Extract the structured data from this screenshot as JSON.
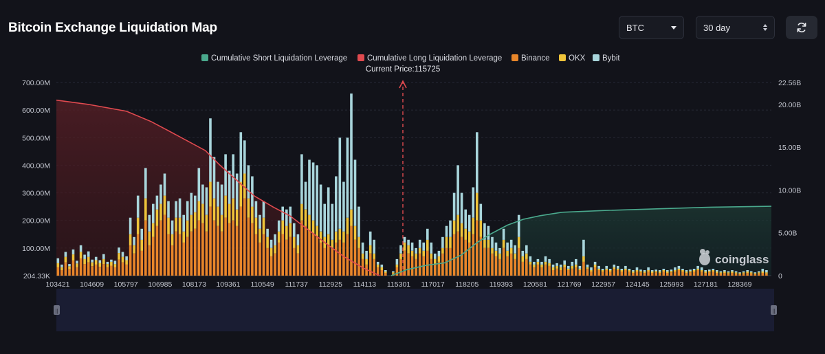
{
  "header": {
    "title": "Bitcoin Exchange Liquidation Map",
    "coin_select": "BTC",
    "range_select": "30 day",
    "refresh_icon": "refresh-icon"
  },
  "watermark": "coinglass",
  "colors": {
    "short_cum": "#4aa98d",
    "long_cum": "#e04a4f",
    "binance": "#e8862a",
    "okx": "#efc43a",
    "bybit": "#a9d6dc",
    "background": "#12131a"
  },
  "chart_data": {
    "type": "bar",
    "current_price_label": "Current Price:115725",
    "current_price": 115725,
    "y_left_ticks": [
      "700.00M",
      "600.00M",
      "500.00M",
      "400.00M",
      "300.00M",
      "200.00M",
      "100.00M",
      "204.33K"
    ],
    "y_left_range": [
      0,
      700000000
    ],
    "y_right_ticks": [
      "22.56B",
      "20.00B",
      "15.00B",
      "10.00B",
      "5.00B",
      "0"
    ],
    "y_right_range": [
      0,
      22560000000
    ],
    "x_ticks": [
      "103421",
      "104609",
      "105797",
      "106985",
      "108173",
      "109361",
      "110549",
      "111737",
      "112925",
      "114113",
      "115301",
      "117017",
      "118205",
      "119393",
      "120581",
      "121769",
      "122957",
      "124145",
      "125993",
      "127181",
      "128369"
    ],
    "x_range": [
      103421,
      129700
    ],
    "legend": [
      {
        "name": "Cumulative Short Liquidation Leverage",
        "color": "#4aa98d"
      },
      {
        "name": "Cumulative Long Liquidation Leverage",
        "color": "#e04a4f"
      },
      {
        "name": "Binance",
        "color": "#e8862a"
      },
      {
        "name": "OKX",
        "color": "#efc43a"
      },
      {
        "name": "Bybit",
        "color": "#a9d6dc"
      }
    ],
    "series_long_cum": {
      "name": "Cumulative Long Liquidation Leverage",
      "x": [
        103421,
        104600,
        106000,
        106900,
        107500,
        108200,
        108900,
        109400,
        110100,
        110700,
        111400,
        112000,
        112700,
        113400,
        114000,
        114700,
        115301
      ],
      "y": [
        20.5,
        20.0,
        19.2,
        18.0,
        17.0,
        15.8,
        14.6,
        13.0,
        11.0,
        9.3,
        8.0,
        7.0,
        5.3,
        3.6,
        2.2,
        0.9,
        0
      ]
    },
    "series_short_cum": {
      "name": "Cumulative Short Liquidation Leverage",
      "x": [
        115725,
        116300,
        117000,
        117700,
        118300,
        118900,
        119400,
        120000,
        120600,
        121200,
        122000,
        123500,
        125500,
        127500,
        129700
      ],
      "y": [
        0,
        0.7,
        1.2,
        1.5,
        2.4,
        3.9,
        4.9,
        5.9,
        6.6,
        7.0,
        7.4,
        7.6,
        7.8,
        8.0,
        8.1
      ]
    },
    "bars_note": "per-price-level liquidation stacks (Binance / OKX / Bybit), values in USD",
    "bars": [
      [
        103480,
        30,
        15,
        18
      ],
      [
        103620,
        20,
        10,
        10
      ],
      [
        103760,
        48,
        20,
        18
      ],
      [
        103900,
        24,
        10,
        8
      ],
      [
        104040,
        55,
        22,
        18
      ],
      [
        104180,
        30,
        14,
        10
      ],
      [
        104320,
        62,
        24,
        24
      ],
      [
        104460,
        42,
        18,
        16
      ],
      [
        104600,
        48,
        20,
        20
      ],
      [
        104740,
        34,
        14,
        10
      ],
      [
        104880,
        40,
        16,
        12
      ],
      [
        105020,
        32,
        14,
        10
      ],
      [
        105160,
        42,
        18,
        18
      ],
      [
        105300,
        30,
        12,
        8
      ],
      [
        105440,
        36,
        14,
        8
      ],
      [
        105580,
        30,
        12,
        12
      ],
      [
        105720,
        58,
        24,
        20
      ],
      [
        105860,
        48,
        20,
        18
      ],
      [
        106000,
        40,
        16,
        14
      ],
      [
        106140,
        110,
        40,
        60
      ],
      [
        106280,
        80,
        30,
        30
      ],
      [
        106420,
        150,
        60,
        80
      ],
      [
        106560,
        90,
        40,
        40
      ],
      [
        106700,
        200,
        80,
        110
      ],
      [
        106840,
        110,
        50,
        60
      ],
      [
        106980,
        140,
        50,
        70
      ],
      [
        107120,
        180,
        60,
        50
      ],
      [
        107260,
        200,
        60,
        70
      ],
      [
        107400,
        220,
        70,
        80
      ],
      [
        107540,
        150,
        60,
        60
      ],
      [
        107680,
        110,
        40,
        50
      ],
      [
        107820,
        160,
        50,
        60
      ],
      [
        107960,
        150,
        60,
        70
      ],
      [
        108100,
        120,
        40,
        60
      ],
      [
        108240,
        140,
        60,
        70
      ],
      [
        108380,
        160,
        60,
        80
      ],
      [
        108520,
        170,
        60,
        60
      ],
      [
        108660,
        200,
        70,
        120
      ],
      [
        108800,
        190,
        70,
        70
      ],
      [
        108940,
        160,
        60,
        100
      ],
      [
        109080,
        250,
        90,
        230
      ],
      [
        109220,
        200,
        80,
        150
      ],
      [
        109360,
        180,
        70,
        90
      ],
      [
        109500,
        160,
        60,
        110
      ],
      [
        109640,
        210,
        80,
        150
      ],
      [
        109780,
        190,
        70,
        120
      ],
      [
        109920,
        200,
        80,
        160
      ],
      [
        110060,
        180,
        60,
        130
      ],
      [
        110200,
        250,
        90,
        180
      ],
      [
        110340,
        280,
        90,
        120
      ],
      [
        110480,
        210,
        70,
        120
      ],
      [
        110620,
        190,
        60,
        110
      ],
      [
        110760,
        150,
        60,
        60
      ],
      [
        110900,
        120,
        50,
        50
      ],
      [
        111040,
        150,
        60,
        60
      ],
      [
        111180,
        100,
        40,
        30
      ],
      [
        111320,
        70,
        30,
        30
      ],
      [
        111460,
        80,
        30,
        40
      ],
      [
        111600,
        120,
        40,
        40
      ],
      [
        111740,
        150,
        50,
        50
      ],
      [
        111880,
        130,
        50,
        60
      ],
      [
        112020,
        140,
        50,
        60
      ],
      [
        112160,
        100,
        40,
        50
      ],
      [
        112300,
        80,
        30,
        40
      ],
      [
        112440,
        200,
        60,
        180
      ],
      [
        112580,
        180,
        60,
        100
      ],
      [
        112720,
        160,
        60,
        200
      ],
      [
        112860,
        150,
        50,
        210
      ],
      [
        113000,
        140,
        40,
        220
      ],
      [
        113140,
        120,
        40,
        170
      ],
      [
        113280,
        100,
        40,
        120
      ],
      [
        113420,
        110,
        40,
        170
      ],
      [
        113560,
        100,
        30,
        130
      ],
      [
        113700,
        120,
        40,
        200
      ],
      [
        113840,
        130,
        40,
        330
      ],
      [
        113980,
        120,
        40,
        180
      ],
      [
        114120,
        150,
        60,
        290
      ],
      [
        114260,
        180,
        60,
        420
      ],
      [
        114400,
        130,
        50,
        240
      ],
      [
        114540,
        100,
        40,
        110
      ],
      [
        114680,
        60,
        20,
        40
      ],
      [
        114820,
        40,
        20,
        30
      ],
      [
        114960,
        80,
        30,
        50
      ],
      [
        115100,
        60,
        20,
        50
      ],
      [
        115240,
        30,
        10,
        10
      ],
      [
        115380,
        20,
        10,
        10
      ],
      [
        115520,
        10,
        5,
        5
      ],
      [
        115800,
        8,
        4,
        4
      ],
      [
        115940,
        30,
        10,
        20
      ],
      [
        116080,
        60,
        20,
        30
      ],
      [
        116220,
        90,
        30,
        20
      ],
      [
        116360,
        80,
        30,
        20
      ],
      [
        116500,
        70,
        20,
        30
      ],
      [
        116640,
        60,
        20,
        20
      ],
      [
        116780,
        80,
        20,
        30
      ],
      [
        116920,
        70,
        20,
        30
      ],
      [
        117060,
        90,
        40,
        40
      ],
      [
        117200,
        60,
        20,
        40
      ],
      [
        117340,
        40,
        20,
        20
      ],
      [
        117480,
        50,
        20,
        20
      ],
      [
        117620,
        80,
        20,
        40
      ],
      [
        117760,
        100,
        40,
        40
      ],
      [
        117900,
        100,
        40,
        60
      ],
      [
        118040,
        150,
        50,
        100
      ],
      [
        118180,
        160,
        60,
        180
      ],
      [
        118320,
        140,
        50,
        110
      ],
      [
        118460,
        130,
        40,
        70
      ],
      [
        118600,
        120,
        40,
        60
      ],
      [
        118740,
        150,
        60,
        110
      ],
      [
        118880,
        200,
        100,
        220
      ],
      [
        119020,
        140,
        60,
        60
      ],
      [
        119160,
        100,
        30,
        60
      ],
      [
        119300,
        100,
        30,
        50
      ],
      [
        119440,
        80,
        20,
        40
      ],
      [
        119580,
        70,
        20,
        30
      ],
      [
        119720,
        60,
        20,
        20
      ],
      [
        119860,
        100,
        30,
        40
      ],
      [
        120000,
        70,
        20,
        30
      ],
      [
        120140,
        80,
        20,
        30
      ],
      [
        120280,
        60,
        20,
        30
      ],
      [
        120420,
        100,
        40,
        80
      ],
      [
        120560,
        50,
        20,
        20
      ],
      [
        120700,
        60,
        20,
        30
      ],
      [
        120840,
        40,
        10,
        20
      ],
      [
        120980,
        30,
        10,
        10
      ],
      [
        121120,
        40,
        10,
        10
      ],
      [
        121260,
        30,
        10,
        10
      ],
      [
        121400,
        40,
        10,
        20
      ],
      [
        121540,
        35,
        10,
        15
      ],
      [
        121680,
        20,
        10,
        10
      ],
      [
        121820,
        25,
        10,
        10
      ],
      [
        121960,
        20,
        10,
        10
      ],
      [
        122100,
        30,
        10,
        15
      ],
      [
        122240,
        20,
        5,
        10
      ],
      [
        122380,
        25,
        10,
        15
      ],
      [
        122520,
        30,
        10,
        20
      ],
      [
        122660,
        20,
        5,
        10
      ],
      [
        122800,
        50,
        20,
        60
      ],
      [
        122940,
        25,
        5,
        10
      ],
      [
        123080,
        15,
        5,
        10
      ],
      [
        123220,
        30,
        10,
        10
      ],
      [
        123360,
        20,
        5,
        10
      ],
      [
        123500,
        15,
        5,
        5
      ],
      [
        123640,
        20,
        5,
        10
      ],
      [
        123780,
        15,
        5,
        5
      ],
      [
        123920,
        25,
        5,
        10
      ],
      [
        124060,
        20,
        5,
        10
      ],
      [
        124200,
        15,
        5,
        5
      ],
      [
        124340,
        20,
        5,
        10
      ],
      [
        124480,
        15,
        5,
        5
      ],
      [
        124620,
        10,
        5,
        5
      ],
      [
        124760,
        15,
        5,
        10
      ],
      [
        124900,
        12,
        5,
        5
      ],
      [
        125040,
        10,
        5,
        5
      ],
      [
        125180,
        15,
        5,
        10
      ],
      [
        125320,
        10,
        5,
        5
      ],
      [
        125460,
        12,
        5,
        5
      ],
      [
        125600,
        10,
        5,
        5
      ],
      [
        125740,
        15,
        5,
        5
      ],
      [
        125880,
        10,
        5,
        5
      ],
      [
        126020,
        12,
        5,
        5
      ],
      [
        126160,
        15,
        5,
        10
      ],
      [
        126300,
        20,
        5,
        10
      ],
      [
        126440,
        15,
        5,
        5
      ],
      [
        126580,
        10,
        5,
        5
      ],
      [
        126720,
        12,
        5,
        5
      ],
      [
        126860,
        15,
        5,
        5
      ],
      [
        127000,
        20,
        5,
        10
      ],
      [
        127140,
        15,
        5,
        10
      ],
      [
        127280,
        10,
        5,
        5
      ],
      [
        127420,
        12,
        5,
        5
      ],
      [
        127560,
        15,
        5,
        5
      ],
      [
        127700,
        10,
        5,
        5
      ],
      [
        127840,
        8,
        4,
        4
      ],
      [
        127980,
        10,
        5,
        5
      ],
      [
        128120,
        8,
        4,
        4
      ],
      [
        128260,
        10,
        5,
        5
      ],
      [
        128400,
        8,
        4,
        4
      ],
      [
        128540,
        6,
        3,
        3
      ],
      [
        128680,
        8,
        4,
        4
      ],
      [
        128820,
        10,
        5,
        5
      ],
      [
        128960,
        8,
        4,
        4
      ],
      [
        129100,
        6,
        3,
        3
      ],
      [
        129240,
        8,
        4,
        4
      ],
      [
        129380,
        10,
        5,
        10
      ],
      [
        129520,
        8,
        4,
        8
      ]
    ]
  }
}
